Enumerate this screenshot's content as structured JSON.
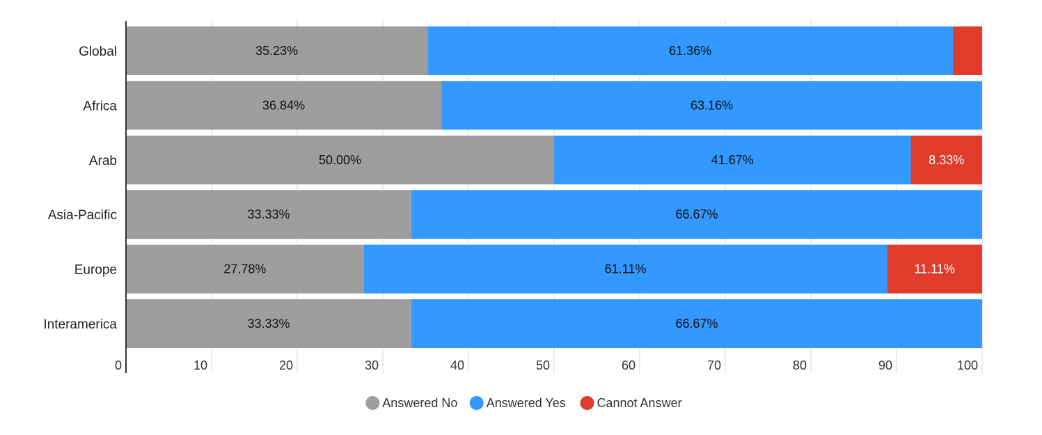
{
  "chart_data": {
    "type": "bar",
    "orientation": "horizontal",
    "stacked": true,
    "categories": [
      "Global",
      "Africa",
      "Arab",
      "Asia-Pacific",
      "Europe",
      "Interamerica"
    ],
    "series": [
      {
        "name": "Answered No",
        "color": "#9e9e9e",
        "values": [
          35.23,
          36.84,
          50.0,
          33.33,
          27.78,
          33.33
        ],
        "labels": [
          "35.23%",
          "36.84%",
          "50.00%",
          "33.33%",
          "27.78%",
          "33.33%"
        ],
        "label_color": "#111111"
      },
      {
        "name": "Answered Yes",
        "color": "#3399ff",
        "values": [
          61.36,
          63.16,
          41.67,
          66.67,
          61.11,
          66.67
        ],
        "labels": [
          "61.36%",
          "63.16%",
          "41.67%",
          "66.67%",
          "61.11%",
          "66.67%"
        ],
        "label_color": "#111111"
      },
      {
        "name": "Cannot Answer",
        "color": "#e03c2b",
        "values": [
          3.41,
          0,
          8.33,
          0,
          11.11,
          0
        ],
        "labels": [
          "",
          "",
          "8.33%",
          "",
          "11.11%",
          ""
        ],
        "label_color": "#ffffff"
      }
    ],
    "xlim": [
      0,
      100
    ],
    "x_ticks": [
      0,
      10,
      20,
      30,
      40,
      50,
      60,
      70,
      80,
      90,
      100
    ],
    "x_tick_labels": [
      "0",
      "10",
      "20",
      "30",
      "40",
      "50",
      "60",
      "70",
      "80",
      "90",
      "100"
    ],
    "xlabel": "",
    "ylabel": "",
    "title": "",
    "grid": "vertical",
    "legend_position": "bottom-center"
  }
}
